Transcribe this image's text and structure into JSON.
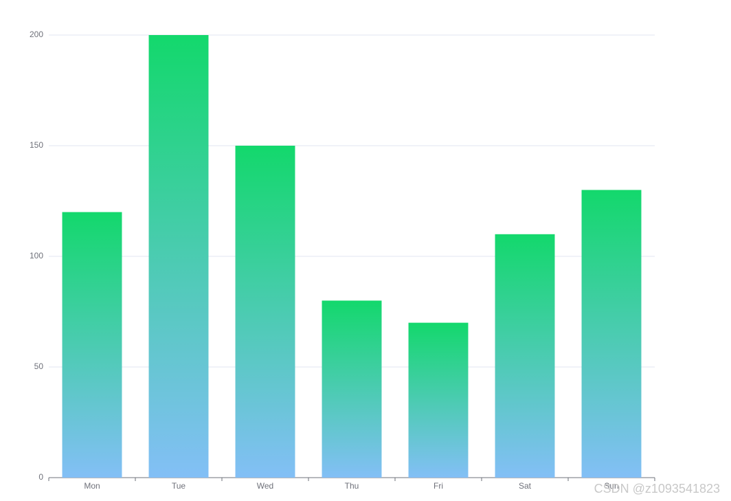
{
  "chart_data": {
    "type": "bar",
    "categories": [
      "Mon",
      "Tue",
      "Wed",
      "Thu",
      "Fri",
      "Sat",
      "Sun"
    ],
    "values": [
      120,
      200,
      150,
      80,
      70,
      110,
      130
    ],
    "gradient": [
      "#13d86c",
      "#83bff6"
    ],
    "ylim": [
      0,
      200
    ],
    "yticks": [
      0,
      50,
      100,
      150,
      200
    ],
    "grid": true
  },
  "watermark": "CSDN @z1093541823"
}
